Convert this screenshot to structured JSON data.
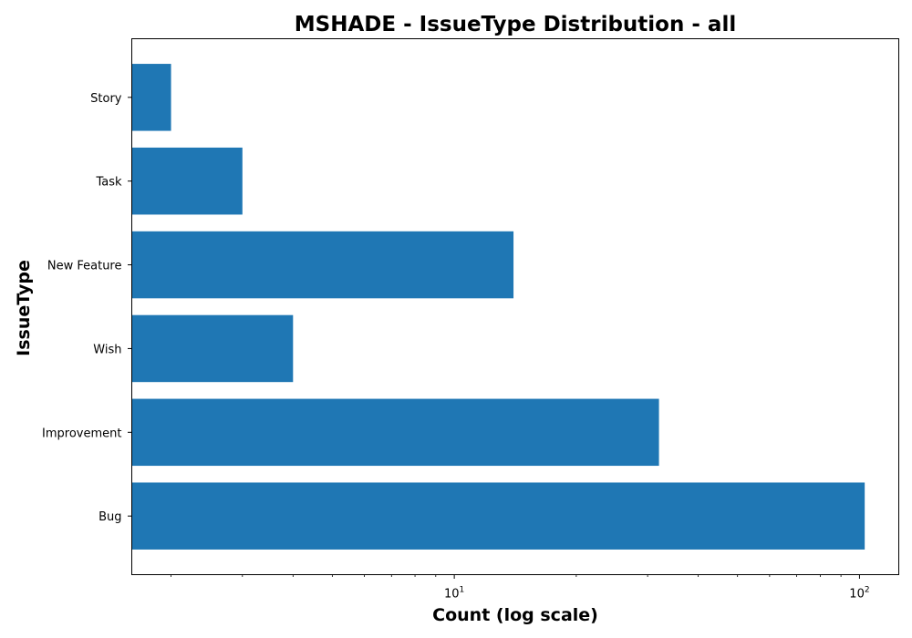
{
  "chart_data": {
    "type": "bar",
    "orientation": "horizontal",
    "title": "MSHADE - IssueType Distribution - all",
    "xlabel": "Count (log scale)",
    "ylabel": "IssueType",
    "x_scale": "log",
    "xlim": [
      1.6,
      125
    ],
    "x_ticks": [
      {
        "value": 10,
        "base": "10",
        "exponent": "1"
      },
      {
        "value": 100,
        "base": "10",
        "exponent": "2"
      }
    ],
    "categories": [
      "Bug",
      "Improvement",
      "Wish",
      "New Feature",
      "Task",
      "Story"
    ],
    "values": [
      103,
      32,
      4,
      14,
      3,
      2
    ],
    "color": "#1f77b4",
    "grid": false,
    "legend": "none"
  }
}
